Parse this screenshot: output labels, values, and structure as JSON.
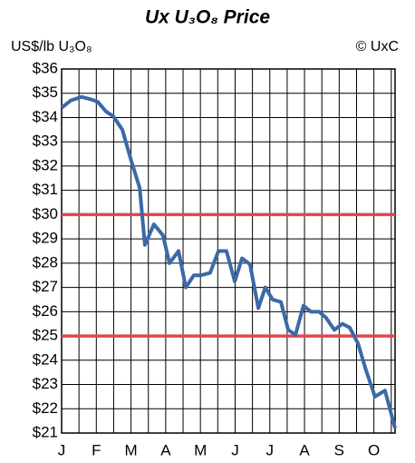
{
  "chart_data": {
    "type": "line",
    "title": "Ux U₃O₈ Price",
    "y_label": "US$/lb U₃O₈",
    "source": "© UxC",
    "x": [
      0,
      0.26,
      0.57,
      0.84,
      1.04,
      1.28,
      1.49,
      1.75,
      2.01,
      2.25,
      2.4,
      2.66,
      2.92,
      3.11,
      3.37,
      3.58,
      3.81,
      4.02,
      4.28,
      4.52,
      4.75,
      4.99,
      5.2,
      5.43,
      5.67,
      5.87,
      6.08,
      6.32,
      6.53,
      6.74,
      6.97,
      7.18,
      7.42,
      7.62,
      7.86,
      8.09,
      8.3,
      8.54,
      8.77,
      9.03,
      9.32,
      9.61
    ],
    "series": [
      {
        "name": "Ux U₃O₈ Price",
        "color": "#3b69a7",
        "values": [
          34.4,
          34.7,
          34.85,
          34.75,
          34.65,
          34.25,
          34.05,
          33.5,
          32.2,
          31.1,
          28.75,
          29.6,
          29.15,
          28.0,
          28.5,
          27.0,
          27.5,
          27.5,
          27.6,
          28.5,
          28.5,
          27.25,
          28.2,
          27.95,
          26.15,
          27.0,
          26.5,
          26.4,
          25.25,
          25.05,
          26.25,
          26.0,
          26.0,
          25.75,
          25.25,
          25.5,
          25.35,
          24.7,
          23.6,
          22.5,
          22.75,
          21.2
        ]
      }
    ],
    "reference_lines": [
      30,
      25
    ],
    "reference_color": "#e0484e",
    "xlim": [
      0,
      9.61
    ],
    "xticks": [
      {
        "value": 0,
        "label": "J"
      },
      {
        "value": 1,
        "label": "F"
      },
      {
        "value": 2,
        "label": "M"
      },
      {
        "value": 3,
        "label": "A"
      },
      {
        "value": 4,
        "label": "M"
      },
      {
        "value": 5,
        "label": "J"
      },
      {
        "value": 6,
        "label": "J"
      },
      {
        "value": 7,
        "label": "A"
      },
      {
        "value": 8,
        "label": "S"
      },
      {
        "value": 9,
        "label": "O"
      }
    ],
    "xminorticks": [
      0.5,
      1.5,
      2.5,
      3.5,
      4.5,
      5.5,
      6.5,
      7.5,
      8.5,
      9.5
    ],
    "ylim": [
      21,
      36
    ],
    "yticks": [
      {
        "value": 21,
        "label": "$21"
      },
      {
        "value": 22,
        "label": "$22"
      },
      {
        "value": 23,
        "label": "$23"
      },
      {
        "value": 24,
        "label": "$24"
      },
      {
        "value": 25,
        "label": "$25"
      },
      {
        "value": 26,
        "label": "$26"
      },
      {
        "value": 27,
        "label": "$27"
      },
      {
        "value": 28,
        "label": "$28"
      },
      {
        "value": 29,
        "label": "$29"
      },
      {
        "value": 30,
        "label": "$30"
      },
      {
        "value": 31,
        "label": "$31"
      },
      {
        "value": 32,
        "label": "$32"
      },
      {
        "value": 33,
        "label": "$33"
      },
      {
        "value": 34,
        "label": "$34"
      },
      {
        "value": 35,
        "label": "$35"
      },
      {
        "value": 36,
        "label": "$36"
      }
    ],
    "grid": true
  }
}
